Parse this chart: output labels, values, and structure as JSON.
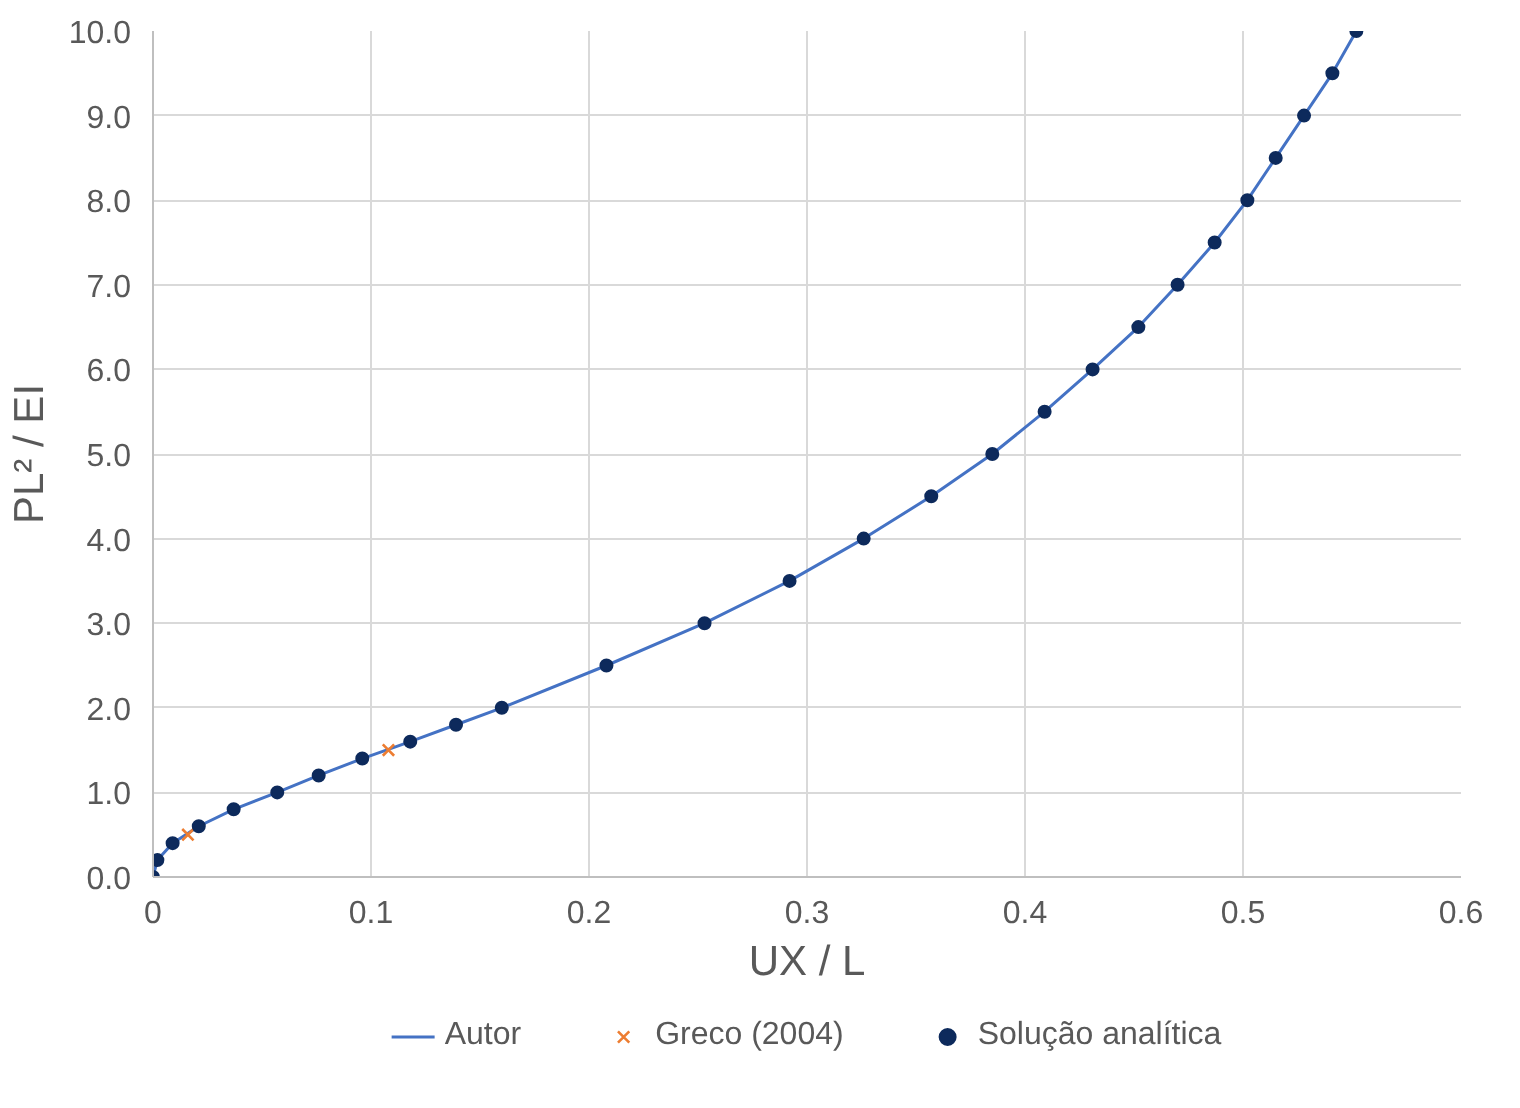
{
  "chart_data": {
    "type": "scatter",
    "xlabel": "UX / L",
    "ylabel": "PL² / EI",
    "xlim": [
      0,
      0.6
    ],
    "ylim": [
      0,
      10
    ],
    "xticks": [
      0,
      0.1,
      0.2,
      0.3,
      0.4,
      0.5,
      0.6
    ],
    "yticks": [
      {
        "value": 0,
        "label": "0.0"
      },
      {
        "value": 1,
        "label": "1.0"
      },
      {
        "value": 2,
        "label": "2.0"
      },
      {
        "value": 3,
        "label": "3.0"
      },
      {
        "value": 4,
        "label": "4.0"
      },
      {
        "value": 5,
        "label": "5.0"
      },
      {
        "value": 6,
        "label": "6.0"
      },
      {
        "value": 7,
        "label": "7.0"
      },
      {
        "value": 8,
        "label": "8.0"
      },
      {
        "value": 9,
        "label": "9.0"
      },
      {
        "value": 10,
        "label": "10.0"
      }
    ],
    "grid": true,
    "legend": "bottom",
    "series": [
      {
        "name": "Autor",
        "type": "line",
        "marker": "none",
        "line_style": "solid",
        "color": "#4472c4",
        "x": [
          0,
          0.002,
          0.009,
          0.021,
          0.037,
          0.057,
          0.076,
          0.096,
          0.118,
          0.139,
          0.16,
          0.208,
          0.253,
          0.292,
          0.326,
          0.357,
          0.385,
          0.409,
          0.431,
          0.452,
          0.47,
          0.487,
          0.502,
          0.515,
          0.528,
          0.541,
          0.552
        ],
        "values": [
          0,
          0.2,
          0.4,
          0.6,
          0.8,
          1.0,
          1.2,
          1.4,
          1.6,
          1.8,
          2.0,
          2.5,
          3.0,
          3.5,
          4.0,
          4.5,
          5.0,
          5.5,
          6.0,
          6.5,
          7.0,
          7.5,
          8.0,
          8.5,
          9.0,
          9.5,
          10.0
        ]
      },
      {
        "name": "Greco (2004)",
        "type": "scatter",
        "marker": "cross",
        "color": "#ed7d31",
        "x": [
          0.016,
          0.108
        ],
        "values": [
          0.5,
          1.5
        ]
      },
      {
        "name": "Solução analítica",
        "type": "scatter",
        "marker": "circle",
        "color": "#0d2a5c",
        "x": [
          0,
          0.002,
          0.009,
          0.021,
          0.037,
          0.057,
          0.076,
          0.096,
          0.118,
          0.139,
          0.16,
          0.208,
          0.253,
          0.292,
          0.326,
          0.357,
          0.385,
          0.409,
          0.431,
          0.452,
          0.47,
          0.487,
          0.502,
          0.515,
          0.528,
          0.541,
          0.552
        ],
        "values": [
          0,
          0.2,
          0.4,
          0.6,
          0.8,
          1.0,
          1.2,
          1.4,
          1.6,
          1.8,
          2.0,
          2.5,
          3.0,
          3.5,
          4.0,
          4.5,
          5.0,
          5.5,
          6.0,
          6.5,
          7.0,
          7.5,
          8.0,
          8.5,
          9.0,
          9.5,
          10.0
        ]
      }
    ]
  }
}
